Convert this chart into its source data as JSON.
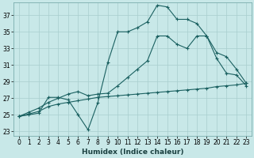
{
  "xlabel": "Humidex (Indice chaleur)",
  "xlim": [
    -0.5,
    23.5
  ],
  "ylim": [
    22.5,
    38.5
  ],
  "xticks": [
    0,
    1,
    2,
    3,
    4,
    5,
    6,
    7,
    8,
    9,
    10,
    11,
    12,
    13,
    14,
    15,
    16,
    17,
    18,
    19,
    20,
    21,
    22,
    23
  ],
  "yticks": [
    23,
    25,
    27,
    29,
    31,
    33,
    35,
    37
  ],
  "bg_color": "#c8e8e8",
  "line_color": "#1a6060",
  "grid_color": "#a8cece",
  "line1_x": [
    0,
    1,
    2,
    3,
    4,
    5,
    6,
    7,
    8,
    9,
    10,
    11,
    12,
    13,
    14,
    15,
    16,
    17,
    18,
    19,
    20,
    21,
    22,
    23
  ],
  "line1_y": [
    24.8,
    25.0,
    25.2,
    27.1,
    27.1,
    26.8,
    25.0,
    23.2,
    26.5,
    31.3,
    35.0,
    35.0,
    35.5,
    36.2,
    38.2,
    38.0,
    36.5,
    36.5,
    36.0,
    34.5,
    31.8,
    30.0,
    29.8,
    28.5
  ],
  "line2_x": [
    0,
    1,
    2,
    3,
    4,
    5,
    6,
    7,
    8,
    9,
    10,
    11,
    12,
    13,
    14,
    15,
    16,
    17,
    18,
    19,
    20,
    21,
    22,
    23
  ],
  "line2_y": [
    24.8,
    25.1,
    25.4,
    26.0,
    26.3,
    26.5,
    26.7,
    26.9,
    27.1,
    27.2,
    27.3,
    27.4,
    27.5,
    27.6,
    27.7,
    27.8,
    27.9,
    28.0,
    28.1,
    28.2,
    28.4,
    28.5,
    28.6,
    28.8
  ],
  "line3_x": [
    0,
    1,
    2,
    3,
    4,
    5,
    6,
    7,
    8,
    9,
    10,
    11,
    12,
    13,
    14,
    15,
    16,
    17,
    18,
    19,
    20,
    21,
    22,
    23
  ],
  "line3_y": [
    24.8,
    25.3,
    25.8,
    26.5,
    27.0,
    27.5,
    27.8,
    27.3,
    27.5,
    27.6,
    28.5,
    29.5,
    30.5,
    31.5,
    34.5,
    34.5,
    33.5,
    33.0,
    34.5,
    34.5,
    32.5,
    32.0,
    30.5,
    28.8
  ],
  "figsize": [
    3.2,
    2.0
  ],
  "dpi": 100
}
